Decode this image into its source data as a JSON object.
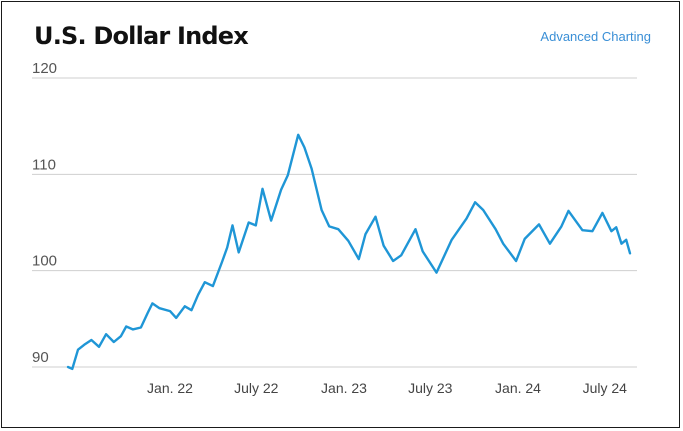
{
  "header": {
    "title": "U.S. Dollar Index",
    "link_label": "Advanced Charting"
  },
  "colors": {
    "line": "#1f96d6",
    "grid": "#cfcfcf",
    "link": "#3a8fd6"
  },
  "chart_data": {
    "type": "line",
    "title": "U.S. Dollar Index",
    "xlabel": "",
    "ylabel": "",
    "ylim": [
      90,
      120
    ],
    "yticks": [
      120,
      110,
      100,
      90
    ],
    "xlim": [
      "2021-06-01",
      "2024-09-15"
    ],
    "xticks": [
      {
        "date": "2022-01-01",
        "label": "Jan. 22"
      },
      {
        "date": "2022-07-01",
        "label": "July 22"
      },
      {
        "date": "2023-01-01",
        "label": "Jan. 23"
      },
      {
        "date": "2023-07-01",
        "label": "July 23"
      },
      {
        "date": "2024-01-01",
        "label": "Jan. 24"
      },
      {
        "date": "2024-07-01",
        "label": "July 24"
      }
    ],
    "grid": true,
    "series": [
      {
        "values": [
          [
            "2021-06-01",
            90.0
          ],
          [
            "2021-06-10",
            89.8
          ],
          [
            "2021-06-22",
            91.8
          ],
          [
            "2021-07-05",
            92.3
          ],
          [
            "2021-07-20",
            92.8
          ],
          [
            "2021-08-05",
            92.1
          ],
          [
            "2021-08-20",
            93.4
          ],
          [
            "2021-09-05",
            92.6
          ],
          [
            "2021-09-20",
            93.2
          ],
          [
            "2021-10-01",
            94.2
          ],
          [
            "2021-10-15",
            93.9
          ],
          [
            "2021-11-01",
            94.1
          ],
          [
            "2021-11-15",
            95.6
          ],
          [
            "2021-11-25",
            96.6
          ],
          [
            "2021-12-10",
            96.1
          ],
          [
            "2022-01-01",
            95.8
          ],
          [
            "2022-01-14",
            95.1
          ],
          [
            "2022-02-01",
            96.3
          ],
          [
            "2022-02-15",
            95.9
          ],
          [
            "2022-03-01",
            97.5
          ],
          [
            "2022-03-15",
            98.8
          ],
          [
            "2022-04-01",
            98.4
          ],
          [
            "2022-04-20",
            100.9
          ],
          [
            "2022-05-01",
            102.4
          ],
          [
            "2022-05-12",
            104.7
          ],
          [
            "2022-05-25",
            101.9
          ],
          [
            "2022-06-15",
            105.0
          ],
          [
            "2022-06-30",
            104.7
          ],
          [
            "2022-07-14",
            108.5
          ],
          [
            "2022-08-01",
            105.2
          ],
          [
            "2022-08-22",
            108.4
          ],
          [
            "2022-09-05",
            109.9
          ],
          [
            "2022-09-27",
            114.1
          ],
          [
            "2022-10-10",
            112.8
          ],
          [
            "2022-10-25",
            110.6
          ],
          [
            "2022-11-15",
            106.3
          ],
          [
            "2022-12-01",
            104.6
          ],
          [
            "2022-12-20",
            104.3
          ],
          [
            "2023-01-10",
            103.1
          ],
          [
            "2023-02-01",
            101.2
          ],
          [
            "2023-02-15",
            103.8
          ],
          [
            "2023-03-08",
            105.6
          ],
          [
            "2023-03-25",
            102.6
          ],
          [
            "2023-04-14",
            101.0
          ],
          [
            "2023-05-01",
            101.6
          ],
          [
            "2023-05-31",
            104.3
          ],
          [
            "2023-06-15",
            102.0
          ],
          [
            "2023-07-14",
            99.8
          ],
          [
            "2023-08-15",
            103.2
          ],
          [
            "2023-09-15",
            105.4
          ],
          [
            "2023-10-03",
            107.1
          ],
          [
            "2023-10-20",
            106.3
          ],
          [
            "2023-11-15",
            104.3
          ],
          [
            "2023-12-01",
            102.8
          ],
          [
            "2023-12-28",
            101.0
          ],
          [
            "2024-01-15",
            103.3
          ],
          [
            "2024-02-14",
            104.8
          ],
          [
            "2024-03-08",
            102.8
          ],
          [
            "2024-04-01",
            104.6
          ],
          [
            "2024-04-16",
            106.2
          ],
          [
            "2024-05-15",
            104.2
          ],
          [
            "2024-06-05",
            104.1
          ],
          [
            "2024-06-26",
            106.0
          ],
          [
            "2024-07-15",
            104.1
          ],
          [
            "2024-07-25",
            104.5
          ],
          [
            "2024-08-05",
            102.8
          ],
          [
            "2024-08-15",
            103.2
          ],
          [
            "2024-08-23",
            101.8
          ]
        ]
      }
    ]
  }
}
